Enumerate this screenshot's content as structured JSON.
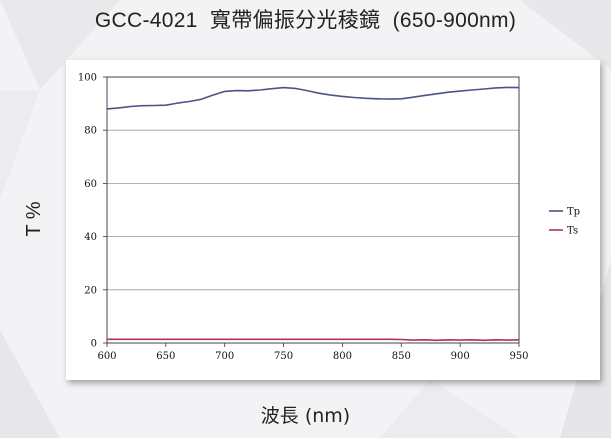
{
  "title": "GCC-4021  寬帶偏振分光稜鏡  (650-900nm)",
  "chart_data": {
    "type": "line",
    "xlabel": "波長 (nm)",
    "ylabel": "T %",
    "xlim": [
      600,
      950
    ],
    "ylim": [
      0,
      100
    ],
    "x_ticks": [
      600,
      650,
      700,
      750,
      800,
      850,
      900,
      950
    ],
    "y_ticks": [
      0,
      20,
      40,
      60,
      80,
      100
    ],
    "grid": true,
    "legend_position": "right",
    "series": [
      {
        "name": "Tp",
        "color": "#4a5488",
        "x": [
          600,
          610,
          620,
          630,
          640,
          650,
          660,
          670,
          680,
          690,
          700,
          710,
          720,
          730,
          740,
          750,
          760,
          770,
          780,
          790,
          800,
          810,
          820,
          830,
          840,
          850,
          860,
          870,
          880,
          890,
          900,
          910,
          920,
          930,
          940,
          950
        ],
        "y": [
          88.0,
          88.4,
          88.9,
          89.2,
          89.3,
          89.4,
          90.2,
          90.8,
          91.6,
          93.2,
          94.6,
          94.9,
          94.8,
          95.1,
          95.6,
          96.0,
          95.7,
          94.9,
          93.9,
          93.2,
          92.7,
          92.3,
          92.0,
          91.8,
          91.7,
          91.8,
          92.4,
          93.1,
          93.7,
          94.3,
          94.7,
          95.1,
          95.5,
          95.9,
          96.1,
          96.0
        ]
      },
      {
        "name": "Ts",
        "color": "#b0306a",
        "x": [
          600,
          610,
          620,
          630,
          640,
          650,
          660,
          670,
          680,
          690,
          700,
          710,
          720,
          730,
          740,
          750,
          760,
          770,
          780,
          790,
          800,
          810,
          820,
          830,
          840,
          850,
          860,
          870,
          880,
          890,
          900,
          910,
          920,
          930,
          940,
          950
        ],
        "y": [
          1.4,
          1.4,
          1.4,
          1.4,
          1.4,
          1.4,
          1.4,
          1.4,
          1.4,
          1.4,
          1.4,
          1.4,
          1.4,
          1.4,
          1.4,
          1.4,
          1.4,
          1.4,
          1.4,
          1.4,
          1.4,
          1.4,
          1.4,
          1.4,
          1.4,
          1.3,
          1.1,
          1.2,
          1.0,
          1.2,
          1.1,
          1.2,
          1.0,
          1.2,
          1.1,
          1.2
        ]
      }
    ]
  }
}
